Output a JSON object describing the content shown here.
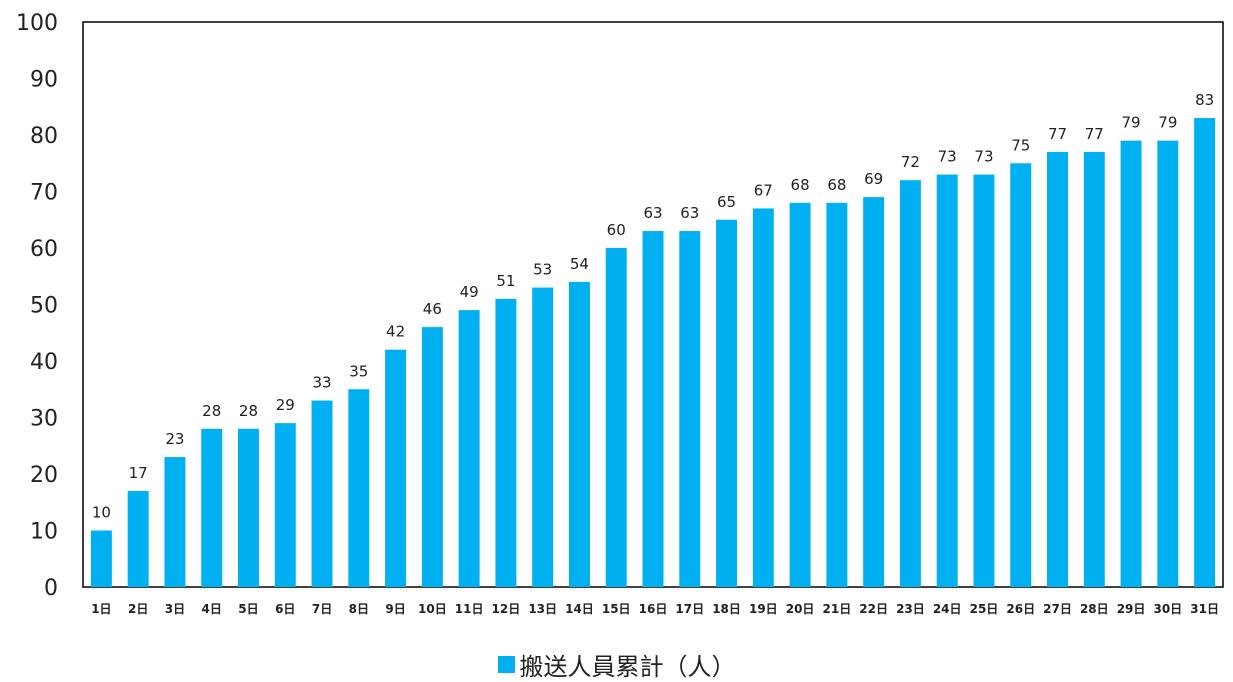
{
  "chart_data": {
    "type": "bar",
    "categories": [
      "1日",
      "2日",
      "3日",
      "4日",
      "5日",
      "6日",
      "7日",
      "8日",
      "9日",
      "10日",
      "11日",
      "12日",
      "13日",
      "14日",
      "15日",
      "16日",
      "17日",
      "18日",
      "19日",
      "20日",
      "21日",
      "22日",
      "23日",
      "24日",
      "25日",
      "26日",
      "27日",
      "28日",
      "29日",
      "30日",
      "31日"
    ],
    "series": [
      {
        "name": "搬送人員累計（人）",
        "color": "#00B0F0",
        "values": [
          10,
          17,
          23,
          28,
          28,
          29,
          33,
          35,
          42,
          46,
          49,
          51,
          53,
          54,
          60,
          63,
          63,
          65,
          67,
          68,
          68,
          69,
          72,
          73,
          73,
          75,
          77,
          77,
          79,
          79,
          83
        ]
      }
    ],
    "ylim": [
      0,
      100
    ],
    "yticks": [
      0,
      10,
      20,
      30,
      40,
      50,
      60,
      70,
      80,
      90,
      100
    ],
    "grid": false,
    "data_labels": true,
    "legend_position": "bottom",
    "title": "",
    "xlabel": "",
    "ylabel": ""
  }
}
